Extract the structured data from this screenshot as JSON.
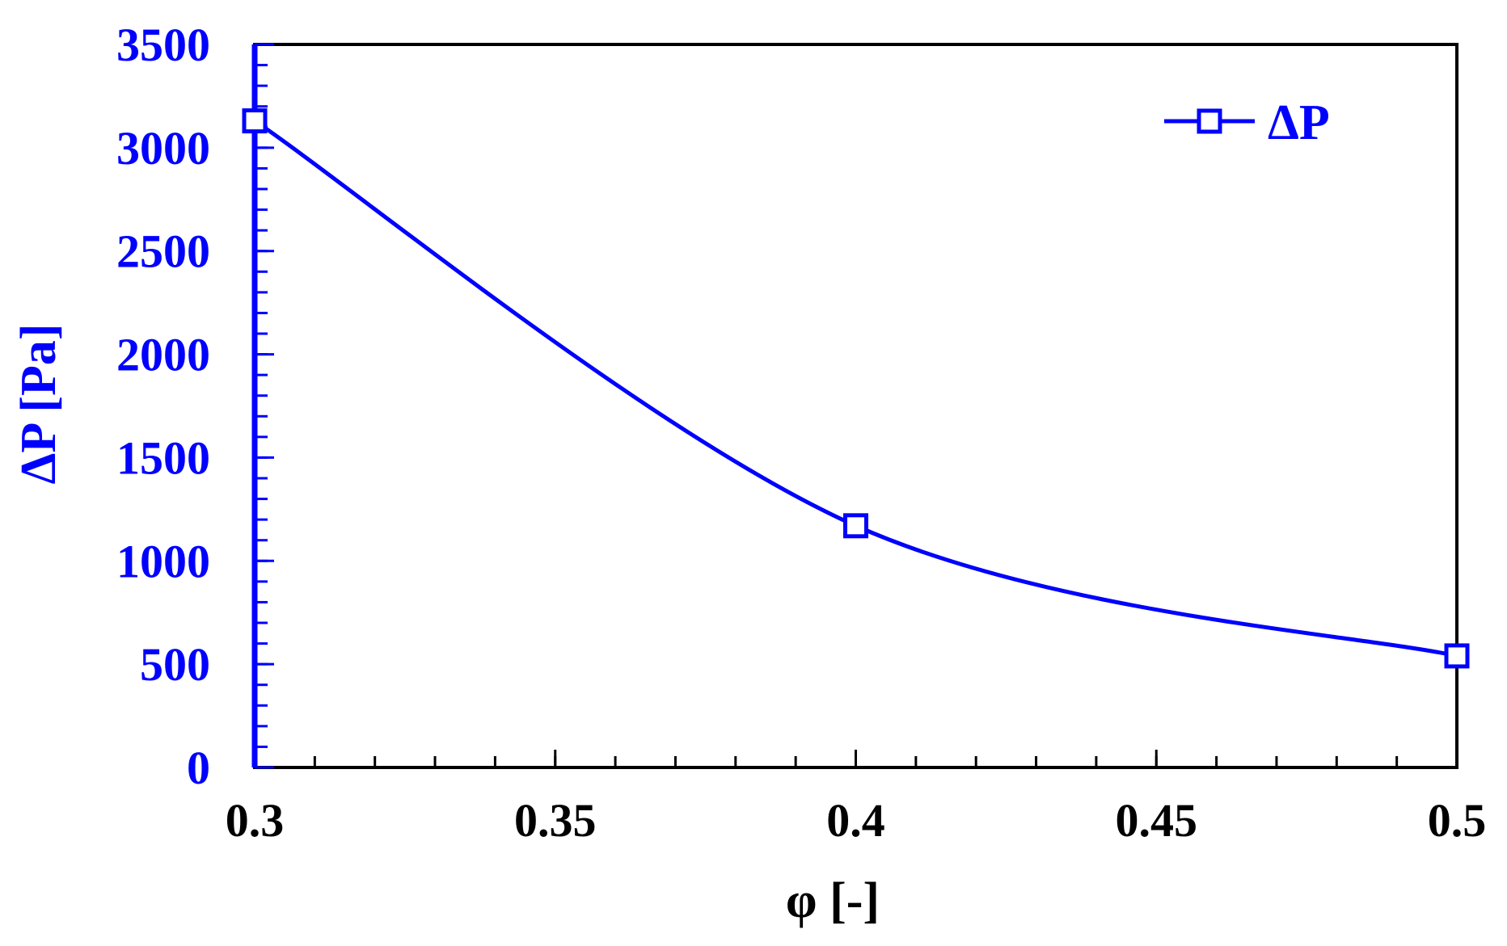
{
  "chart_data": {
    "type": "line",
    "x": [
      0.3,
      0.4,
      0.5
    ],
    "series": [
      {
        "name": "ΔP",
        "values": [
          3130,
          1170,
          540
        ]
      }
    ],
    "xlabel": "φ [-]",
    "ylabel": "ΔP [Pa]",
    "xlim": [
      0.3,
      0.5
    ],
    "ylim": [
      0,
      3500
    ],
    "x_ticks": [
      "0.3",
      "0.35",
      "0.4",
      "0.45",
      "0.5"
    ],
    "y_ticks": [
      "0",
      "500",
      "1000",
      "1500",
      "2000",
      "2500",
      "3000",
      "3500"
    ],
    "x_tick_values": [
      0.3,
      0.35,
      0.4,
      0.45,
      0.5
    ],
    "y_tick_values": [
      0,
      500,
      1000,
      1500,
      2000,
      2500,
      3000,
      3500
    ],
    "grid": false,
    "legend_position": "top-right",
    "marker": "open-square",
    "smooth": true,
    "colors": {
      "series": "#0000ff",
      "y_axis": "#0000ff",
      "x_axis": "#000000"
    }
  }
}
